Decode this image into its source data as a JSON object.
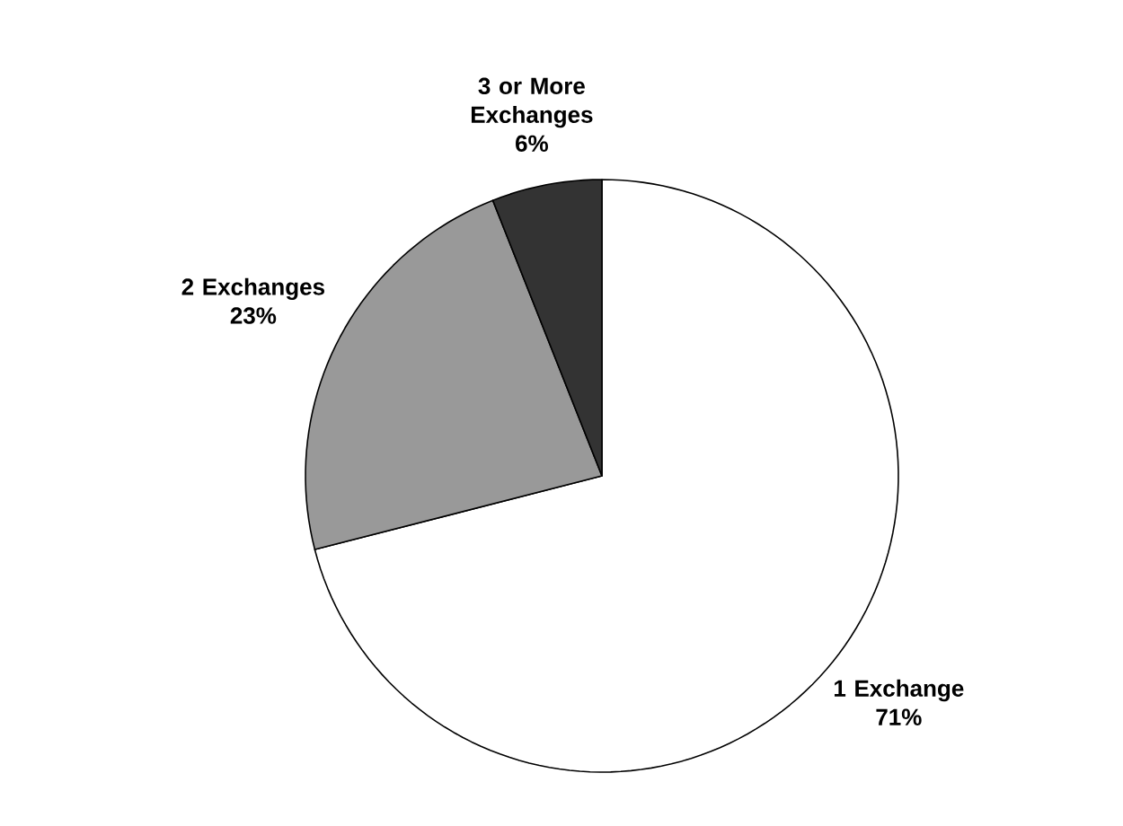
{
  "chart_data": {
    "type": "pie",
    "categories": [
      "1 Exchange",
      "2 Exchanges",
      "3 or More Exchanges"
    ],
    "values": [
      71,
      23,
      6
    ],
    "colors": [
      "#ffffff",
      "#999999",
      "#333333"
    ],
    "value_labels": [
      "71%",
      "23%",
      "6%"
    ]
  }
}
